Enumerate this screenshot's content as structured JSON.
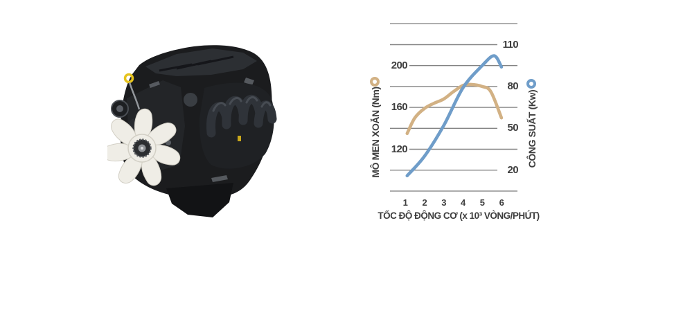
{
  "canvas": {
    "background": "#ffffff"
  },
  "engine_illustration": {
    "body_color": "#1b1c1e",
    "cover_color": "#2c2f33",
    "face_color": "#232528",
    "manifold_color": "#1f2124",
    "runner_color": "#2f3339",
    "oil_pan_color": "#121315",
    "fan_color": "#efede6",
    "fan_edge_color": "#d2cfc5",
    "hub_gear_color": "#2c2e31",
    "dipstick_color": "#e6c31d"
  },
  "chart_data": {
    "type": "line",
    "title": "",
    "x_axis": {
      "label": "TỐC ĐỘ ĐỘNG CƠ (x 10³ VÒNG/PHÚT)",
      "ticks": [
        "1",
        "2",
        "3",
        "4",
        "5",
        "6"
      ]
    },
    "left_axis": {
      "label": "MÔ MEN XOẮN (Nm)",
      "unit": "Nm",
      "ticks": [
        200,
        160,
        120
      ],
      "top_value": 240,
      "value_per_gridline": 20,
      "legend_marker_color": "#d2b184"
    },
    "right_axis": {
      "label": "CÔNG SUẤT (Kw)",
      "unit": "Kw",
      "ticks": [
        110,
        80,
        50,
        20
      ],
      "top_value": 125,
      "value_per_gridline": 15,
      "legend_marker_color": "#6f9dc9"
    },
    "gridlines": {
      "count": 9,
      "color": "#828282",
      "left_labeled_indices": [
        2,
        4,
        6
      ],
      "right_labeled_indices": [
        1,
        3,
        5,
        7
      ]
    },
    "text_color": "#3e3e3e",
    "series": [
      {
        "name": "mo-men-xoan",
        "axis": "left",
        "color": "#d2b184",
        "points": [
          [
            1.1,
            135
          ],
          [
            1.5,
            150
          ],
          [
            2,
            159
          ],
          [
            2.5,
            164
          ],
          [
            3,
            168
          ],
          [
            3.5,
            175
          ],
          [
            4,
            181
          ],
          [
            4.4,
            182
          ],
          [
            5,
            180
          ],
          [
            5.45,
            175
          ],
          [
            6,
            150
          ]
        ]
      },
      {
        "name": "cong-suat",
        "axis": "right",
        "color": "#6f9dc9",
        "points": [
          [
            1.1,
            16
          ],
          [
            2,
            30
          ],
          [
            3,
            52
          ],
          [
            4,
            79
          ],
          [
            5,
            95
          ],
          [
            5.62,
            102
          ],
          [
            6,
            94
          ]
        ]
      }
    ],
    "legend_position": "beside-axis-labels",
    "grid": true
  }
}
